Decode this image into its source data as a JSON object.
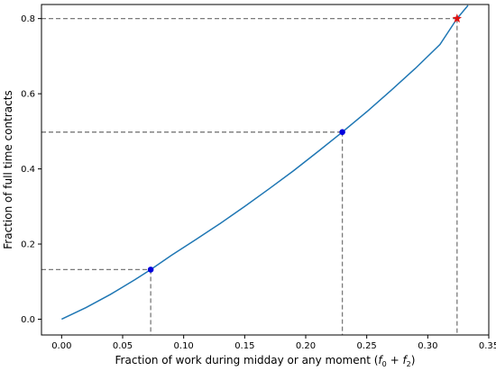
{
  "chart_data": {
    "type": "line",
    "xlabel_main": "Fraction of work during midday or any moment (",
    "xlabel_math": "f",
    "xlabel_sub0": "0",
    "xlabel_plus": " + ",
    "xlabel_sub2": "2",
    "xlabel_close": ")",
    "ylabel": "Fraction of full time contracts",
    "xlim": [
      -0.0165,
      0.35
    ],
    "ylim": [
      -0.042,
      0.8375
    ],
    "xticks": [
      {
        "value": 0.0,
        "label": "0.00"
      },
      {
        "value": 0.05,
        "label": "0.05"
      },
      {
        "value": 0.1,
        "label": "0.10"
      },
      {
        "value": 0.15,
        "label": "0.15"
      },
      {
        "value": 0.2,
        "label": "0.20"
      },
      {
        "value": 0.25,
        "label": "0.25"
      },
      {
        "value": 0.3,
        "label": "0.30"
      },
      {
        "value": 0.35,
        "label": "0.35"
      }
    ],
    "yticks": [
      {
        "value": 0.0,
        "label": "0.0"
      },
      {
        "value": 0.2,
        "label": "0.2"
      },
      {
        "value": 0.4,
        "label": "0.4"
      },
      {
        "value": 0.6,
        "label": "0.6"
      },
      {
        "value": 0.8,
        "label": "0.8"
      }
    ],
    "grid": false,
    "curve": {
      "color": "#1f77b4",
      "x": [
        0.0,
        0.02,
        0.04,
        0.06,
        0.073,
        0.09,
        0.11,
        0.13,
        0.15,
        0.17,
        0.19,
        0.21,
        0.23,
        0.25,
        0.27,
        0.29,
        0.31,
        0.324,
        0.333
      ],
      "y": [
        0.0,
        0.031,
        0.066,
        0.105,
        0.132,
        0.17,
        0.212,
        0.255,
        0.3,
        0.347,
        0.395,
        0.446,
        0.498,
        0.552,
        0.609,
        0.668,
        0.731,
        0.8,
        0.835
      ]
    },
    "points": [
      {
        "x": 0.073,
        "y": 0.132,
        "marker": "circle",
        "color": "#0000dd"
      },
      {
        "x": 0.23,
        "y": 0.498,
        "marker": "circle",
        "color": "#0000dd"
      },
      {
        "x": 0.324,
        "y": 0.8,
        "marker": "star",
        "color": "#dd1111"
      }
    ],
    "guide_color": "#7a7a7a"
  }
}
